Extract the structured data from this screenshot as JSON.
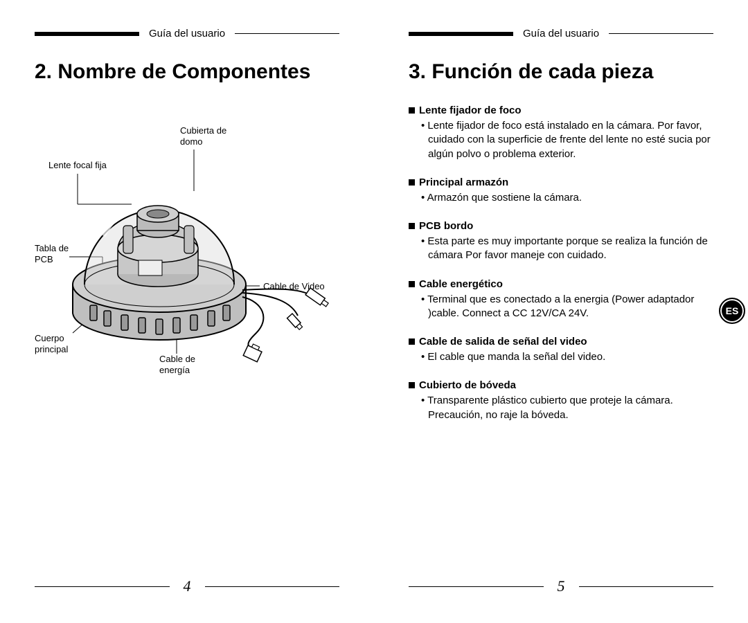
{
  "header_text": "Guía del usuario",
  "left": {
    "title": "2. Nombre de Componentes",
    "page_num": "4",
    "labels": {
      "lente": "Lente focal fija",
      "cubierta": "Cubierta de\ndomo",
      "pcb": "Tabla de\nPCB",
      "video": "Cable de Video",
      "cuerpo": "Cuerpo\nprincipal",
      "energia": "Cable de\nenergía"
    }
  },
  "right": {
    "title": "3. Función de cada pieza",
    "page_num": "5",
    "lang_badge": "ES",
    "items": [
      {
        "title": "Lente fijador de foco",
        "body": "Lente fijador de foco está instalado en la cámara. Por favor, cuidado con la superficie de frente del lente no esté sucia por algún polvo o problema exterior."
      },
      {
        "title": "Principal armazón",
        "body": "Armazón que sostiene la cámara."
      },
      {
        "title": "PCB bordo",
        "body": "Esta parte es muy importante porque se realiza la función de cámara Por favor maneje con cuidado."
      },
      {
        "title": "Cable energético",
        "body": "Terminal que es conectado a la energia (Power adaptador )cable. Connect a CC 12V/CA 24V."
      },
      {
        "title": "Cable de salida de señal del video",
        "body": "El cable que manda la señal del video."
      },
      {
        "title": "Cubierto de bóveda",
        "body": "Transparente plástico cubierto que proteje la cámara. Precaución, no raje la bóveda."
      }
    ]
  },
  "style": {
    "bullet": "•"
  }
}
